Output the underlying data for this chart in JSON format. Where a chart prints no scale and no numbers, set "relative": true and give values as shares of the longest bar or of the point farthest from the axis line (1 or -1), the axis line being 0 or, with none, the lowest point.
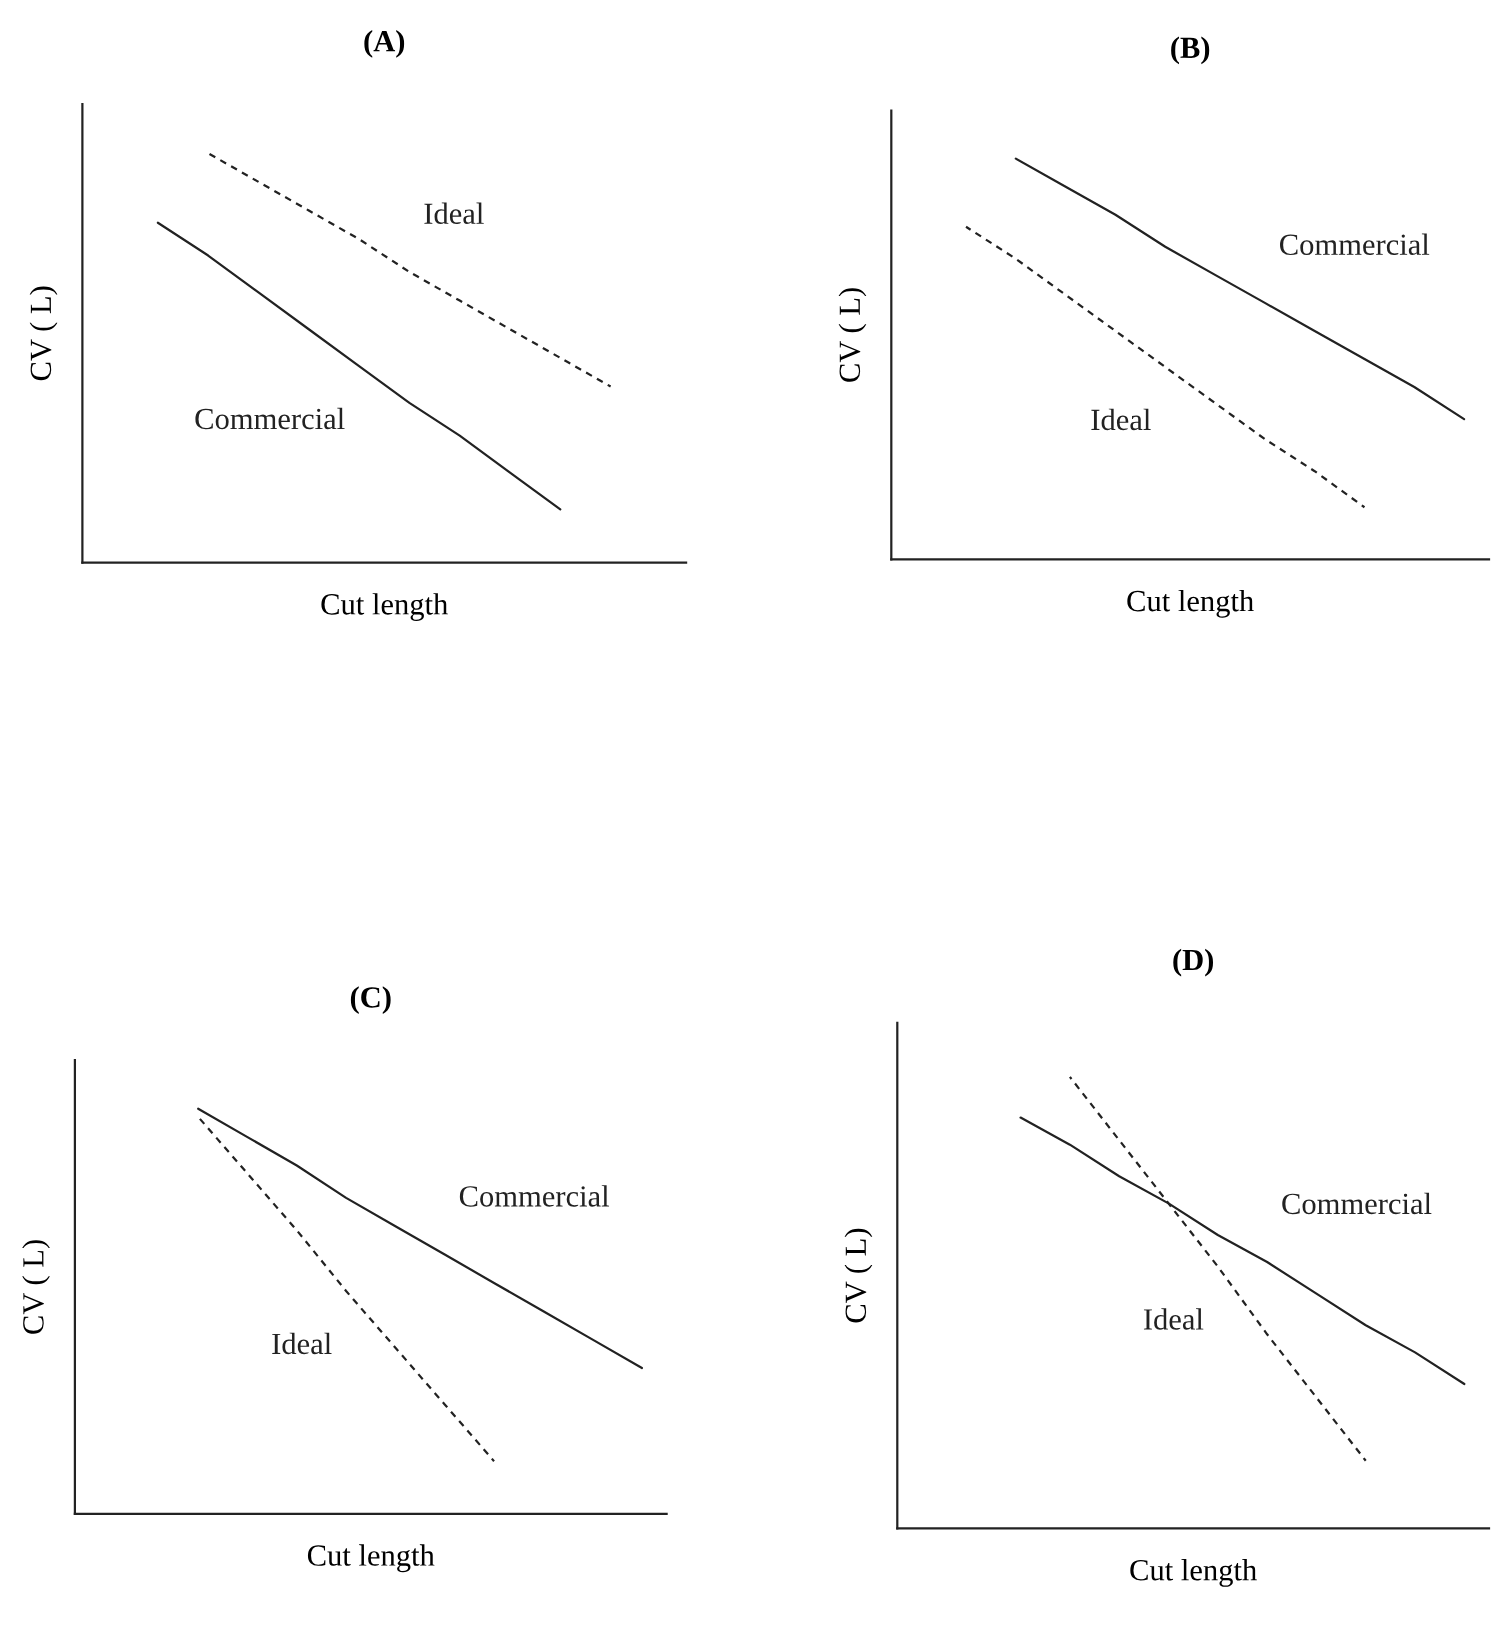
{
  "chart_data": [
    {
      "type": "line",
      "title": "(A)",
      "xlabel": "Cut length",
      "ylabel": "CV ( L)",
      "relative": true,
      "legend": false,
      "tick_labels": false,
      "categories": [
        null,
        null,
        null,
        null,
        null,
        null,
        null,
        null,
        null,
        null,
        null,
        null
      ],
      "series": [
        {
          "name": "Ideal",
          "color": "#222222",
          "line_style": "dashed",
          "values": [
            null,
            null,
            1.0,
            0.93,
            0.86,
            0.79,
            0.71,
            0.64,
            0.57,
            0.5,
            0.43,
            null
          ]
        },
        {
          "name": "Commercial",
          "color": "#222222",
          "line_style": "solid",
          "values": [
            null,
            0.83,
            0.75,
            0.66,
            0.57,
            0.48,
            0.39,
            0.31,
            0.22,
            0.13,
            null,
            null
          ]
        }
      ]
    },
    {
      "type": "line",
      "title": "(B)",
      "xlabel": "Cut length",
      "ylabel": "CV ( L)",
      "relative": true,
      "legend": false,
      "tick_labels": false,
      "categories": [
        null,
        null,
        null,
        null,
        null,
        null,
        null,
        null,
        null,
        null,
        null,
        null
      ],
      "series": [
        {
          "name": "Commercial",
          "color": "#222222",
          "line_style": "solid",
          "values": [
            null,
            null,
            1.0,
            0.93,
            0.86,
            0.78,
            0.71,
            0.64,
            0.57,
            0.5,
            0.43,
            0.35
          ]
        },
        {
          "name": "Ideal",
          "color": "#222222",
          "line_style": "dashed",
          "values": [
            null,
            0.83,
            0.75,
            0.66,
            0.57,
            0.48,
            0.39,
            0.3,
            0.22,
            0.13,
            null,
            null
          ]
        }
      ]
    },
    {
      "type": "line",
      "title": "(C)",
      "xlabel": "Cut length",
      "ylabel": "CV ( L)",
      "relative": true,
      "legend": false,
      "tick_labels": false,
      "categories": [
        null,
        null,
        null,
        null,
        null,
        null,
        null,
        null,
        null,
        null,
        null,
        null
      ],
      "series": [
        {
          "name": "Commercial",
          "color": "#222222",
          "line_style": "solid",
          "values": [
            null,
            null,
            1.0,
            0.93,
            0.86,
            0.78,
            0.71,
            0.64,
            0.57,
            0.5,
            0.43,
            0.36
          ]
        },
        {
          "name": "Ideal",
          "color": "#222222",
          "line_style": "dashed",
          "values": [
            null,
            null,
            0.98,
            0.84,
            0.7,
            0.55,
            0.41,
            0.27,
            0.13,
            null,
            null,
            null
          ]
        }
      ]
    },
    {
      "type": "line",
      "title": "(D)",
      "xlabel": "Cut length",
      "ylabel": "CV ( L)",
      "relative": true,
      "legend": false,
      "tick_labels": false,
      "categories": [
        null,
        null,
        null,
        null,
        null,
        null,
        null,
        null,
        null,
        null,
        null,
        null
      ],
      "series": [
        {
          "name": "Commercial",
          "color": "#222222",
          "line_style": "solid",
          "values": [
            null,
            null,
            0.91,
            0.85,
            0.78,
            0.72,
            0.65,
            0.59,
            0.52,
            0.45,
            0.39,
            0.32
          ]
        },
        {
          "name": "Ideal",
          "color": "#222222",
          "line_style": "dashed",
          "values": [
            null,
            null,
            null,
            1.0,
            0.86,
            0.72,
            0.58,
            0.43,
            0.29,
            0.15,
            null,
            null
          ]
        }
      ]
    }
  ]
}
